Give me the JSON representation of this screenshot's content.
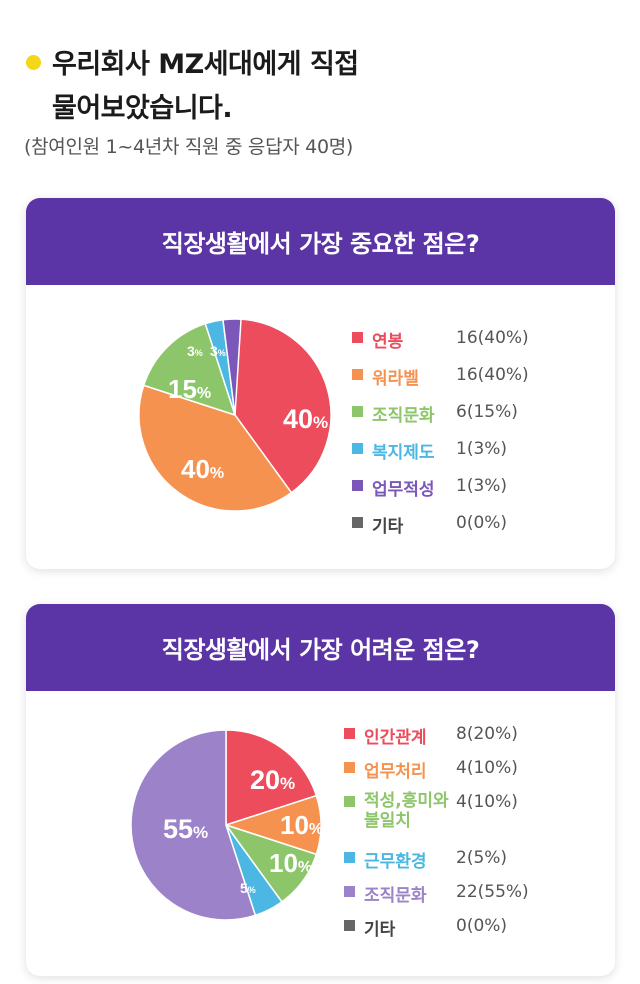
{
  "header": {
    "title_line1": "우리회사 MZ세대에게 직접",
    "title_line2": "물어보았습니다.",
    "subtitle": "(참여인원 1~4년차 직원 중 응답자 40명)",
    "bullet_color": "#f3d718"
  },
  "chart_data": [
    {
      "type": "pie",
      "title": "직장생활에서 가장 중요한 점은?",
      "slices": [
        {
          "label": "연봉",
          "count": 16,
          "percent": 40,
          "value_text": "16(40%)",
          "color": "#ec4c5b",
          "slice_label": "40%"
        },
        {
          "label": "워라벨",
          "count": 16,
          "percent": 40,
          "value_text": "16(40%)",
          "color": "#f5924f",
          "slice_label": "40%"
        },
        {
          "label": "조직문화",
          "count": 6,
          "percent": 15,
          "value_text": "6(15%)",
          "color": "#8dc66a",
          "slice_label": "15%"
        },
        {
          "label": "복지제도",
          "count": 1,
          "percent": 3,
          "value_text": "1(3%)",
          "color": "#4bb7e2",
          "slice_label": "3%"
        },
        {
          "label": "업무적성",
          "count": 1,
          "percent": 3,
          "value_text": "1(3%)",
          "color": "#7a57b8",
          "slice_label": "3%"
        },
        {
          "label": "기타",
          "count": 0,
          "percent": 0,
          "value_text": "0(0%)",
          "color": "#666666",
          "slice_label": ""
        }
      ]
    },
    {
      "type": "pie",
      "title": "직장생활에서 가장 어려운 점은?",
      "slices": [
        {
          "label": "인간관계",
          "count": 8,
          "percent": 20,
          "value_text": "8(20%)",
          "color": "#ec4c5b",
          "slice_label": "20%"
        },
        {
          "label": "업무처리",
          "count": 4,
          "percent": 10,
          "value_text": "4(10%)",
          "color": "#f5924f",
          "slice_label": "10%"
        },
        {
          "label": "적성,흥미와 불일치",
          "count": 4,
          "percent": 10,
          "value_text": "4(10%)",
          "color": "#8dc66a",
          "slice_label": "10%"
        },
        {
          "label": "근무환경",
          "count": 2,
          "percent": 5,
          "value_text": "2(5%)",
          "color": "#4bb7e2",
          "slice_label": "5%"
        },
        {
          "label": "조직문화",
          "count": 22,
          "percent": 55,
          "value_text": "22(55%)",
          "color": "#9b82c9",
          "slice_label": "55%"
        },
        {
          "label": "기타",
          "count": 0,
          "percent": 0,
          "value_text": "0(0%)",
          "color": "#666666",
          "slice_label": ""
        }
      ]
    }
  ]
}
